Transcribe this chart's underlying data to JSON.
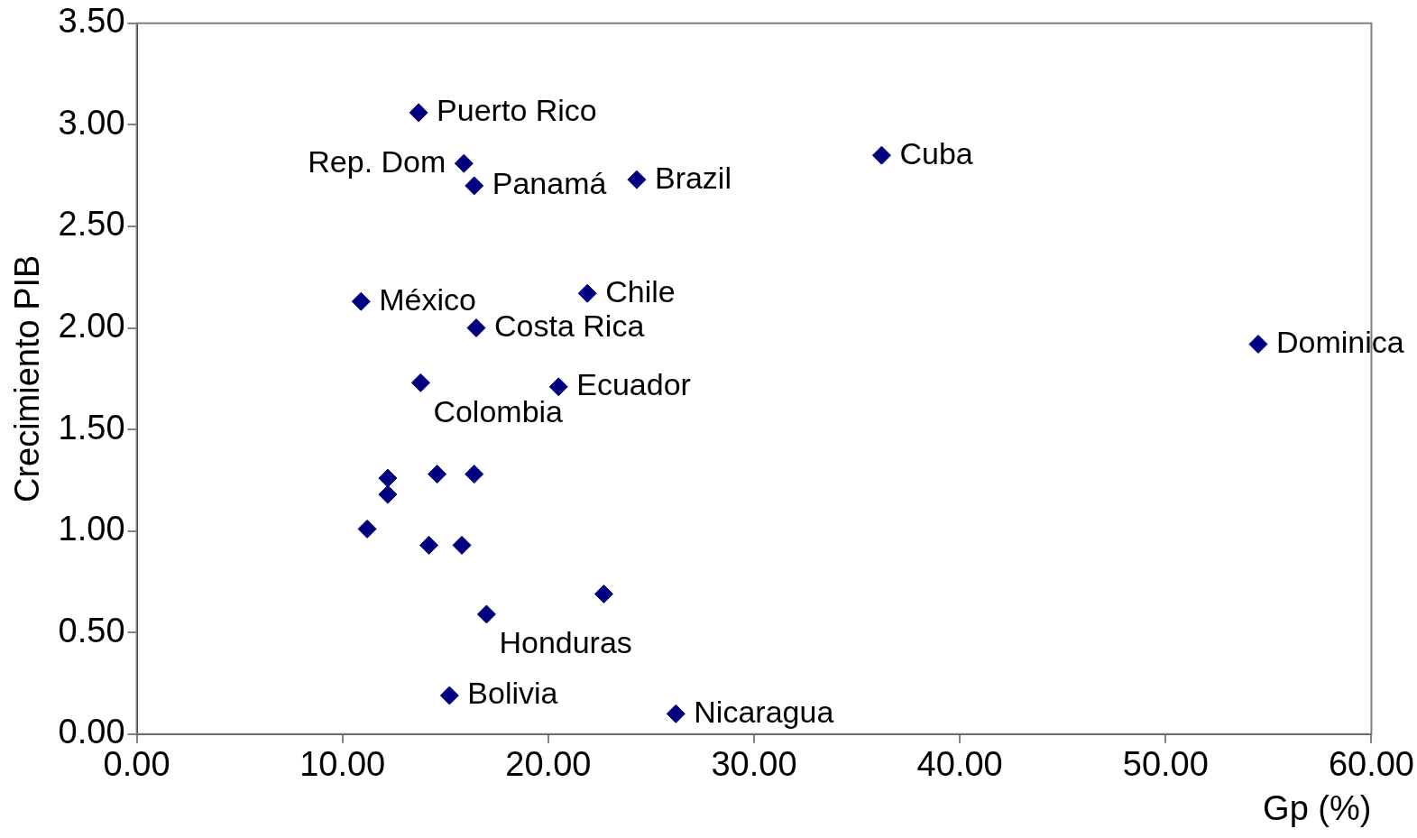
{
  "chart_data": {
    "type": "scatter",
    "xlabel": "Gp (%)",
    "ylabel": "Crecimiento PIB",
    "xlim": [
      0,
      60
    ],
    "xticks": [
      {
        "value": 0,
        "label": "0.00"
      },
      {
        "value": 10,
        "label": "10.00"
      },
      {
        "value": 20,
        "label": "20.00"
      },
      {
        "value": 30,
        "label": "30.00"
      },
      {
        "value": 40,
        "label": "40.00"
      },
      {
        "value": 50,
        "label": "50.00"
      },
      {
        "value": 60,
        "label": "60.00"
      }
    ],
    "ylim": [
      0,
      3.5
    ],
    "yticks": [
      {
        "value": 0,
        "label": "0.00"
      },
      {
        "value": 0.5,
        "label": "0.50"
      },
      {
        "value": 1,
        "label": "1.00"
      },
      {
        "value": 1.5,
        "label": "1.50"
      },
      {
        "value": 2,
        "label": "2.00"
      },
      {
        "value": 2.5,
        "label": "2.50"
      },
      {
        "value": 3,
        "label": "3.00"
      },
      {
        "value": 3.5,
        "label": "3.50"
      }
    ],
    "grid": false,
    "legend": false,
    "marker": "diamond",
    "series": [
      {
        "color": "#000080",
        "x": [
          13.7,
          15.9,
          16.4,
          24.3,
          36.2,
          10.9,
          21.9,
          16.5,
          54.5,
          13.8,
          20.5,
          12.2,
          12.2,
          14.6,
          16.4,
          11.2,
          14.2,
          15.8,
          22.7,
          17.0,
          15.2,
          26.2
        ],
        "values": [
          3.06,
          2.81,
          2.7,
          2.73,
          2.85,
          2.13,
          2.17,
          2.0,
          1.92,
          1.73,
          1.71,
          1.26,
          1.18,
          1.28,
          1.28,
          1.01,
          0.93,
          0.93,
          0.69,
          0.59,
          0.19,
          0.1
        ]
      }
    ],
    "annotations": [
      {
        "text": "Puerto Rico",
        "x": 13.7,
        "y": 3.06
      },
      {
        "text": "Rep. Dom",
        "x": 15.9,
        "y": 2.81
      },
      {
        "text": "Panamá",
        "x": 16.4,
        "y": 2.7
      },
      {
        "text": "Brazil",
        "x": 24.3,
        "y": 2.73
      },
      {
        "text": "Cuba",
        "x": 36.2,
        "y": 2.85
      },
      {
        "text": "México",
        "x": 10.9,
        "y": 2.13
      },
      {
        "text": "Chile",
        "x": 21.9,
        "y": 2.17
      },
      {
        "text": "Costa Rica",
        "x": 16.5,
        "y": 2.0
      },
      {
        "text": "Dominica",
        "x": 54.5,
        "y": 1.92
      },
      {
        "text": "Colombia",
        "x": 13.8,
        "y": 1.73
      },
      {
        "text": "Ecuador",
        "x": 20.5,
        "y": 1.71
      },
      {
        "text": "Honduras",
        "x": 17.0,
        "y": 0.59
      },
      {
        "text": "Bolivia",
        "x": 15.2,
        "y": 0.19
      },
      {
        "text": "Nicaragua",
        "x": 26.2,
        "y": 0.1
      }
    ]
  }
}
